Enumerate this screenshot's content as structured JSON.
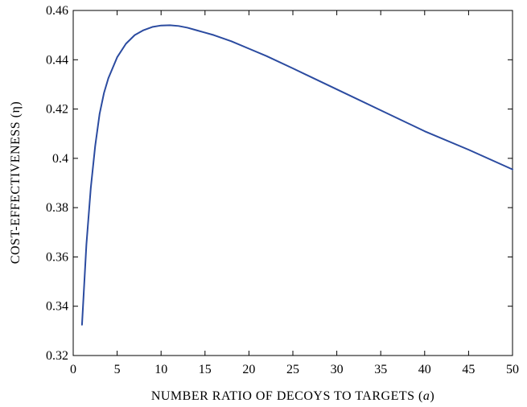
{
  "chart_data": {
    "type": "line",
    "xlabel_main": "NUMBER RATIO OF DECOYS TO TARGETS (",
    "xlabel_var": "a",
    "xlabel_end": ")",
    "ylabel": "COST-EFFECTIVENESS (η)",
    "xlim": [
      0,
      50
    ],
    "ylim": [
      0.32,
      0.46
    ],
    "xticks": [
      0,
      5,
      10,
      15,
      20,
      25,
      30,
      35,
      40,
      45,
      50
    ],
    "yticks": [
      0.32,
      0.34,
      0.36,
      0.38,
      0.4,
      0.42,
      0.44,
      0.46
    ],
    "xtick_labels": [
      "0",
      "5",
      "10",
      "15",
      "20",
      "25",
      "30",
      "35",
      "40",
      "45",
      "50"
    ],
    "ytick_labels": [
      "0.32",
      "0.34",
      "0.36",
      "0.38",
      "0.4",
      "0.42",
      "0.44",
      "0.46"
    ],
    "grid": false,
    "series": [
      {
        "color": "#2b4ba0",
        "x": [
          1,
          1.5,
          2,
          2.5,
          3,
          3.5,
          4,
          5,
          6,
          7,
          8,
          9,
          10,
          11,
          12,
          13,
          14,
          15,
          16,
          18,
          20,
          22,
          25,
          30,
          35,
          40,
          45,
          50
        ],
        "y": [
          0.3325,
          0.365,
          0.388,
          0.405,
          0.418,
          0.4265,
          0.4325,
          0.441,
          0.4465,
          0.45,
          0.452,
          0.4533,
          0.4539,
          0.454,
          0.4537,
          0.453,
          0.452,
          0.451,
          0.45,
          0.4475,
          0.4445,
          0.4415,
          0.4365,
          0.428,
          0.4195,
          0.411,
          0.4035,
          0.3955
        ]
      }
    ]
  }
}
